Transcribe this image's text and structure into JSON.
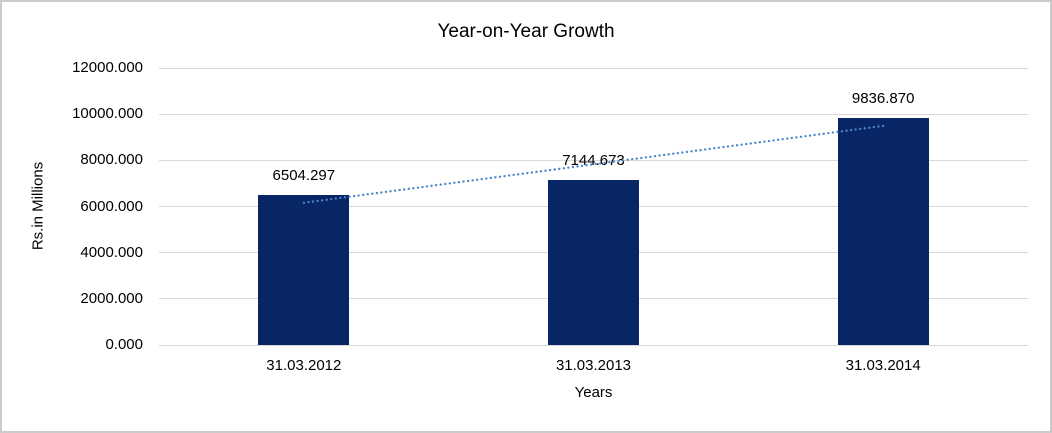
{
  "chart_data": {
    "type": "bar",
    "title": "Year-on-Year Growth",
    "xlabel": "Years",
    "ylabel": "Rs.in Millions",
    "categories": [
      "31.03.2012",
      "31.03.2013",
      "31.03.2014"
    ],
    "values": [
      6504.297,
      7144.673,
      9836.87
    ],
    "data_labels": [
      "6504.297",
      "7144.673",
      "9836.870"
    ],
    "ylim": [
      0,
      12000
    ],
    "y_ticks": [
      {
        "value": 0,
        "label": "0.000"
      },
      {
        "value": 2000,
        "label": "2000.000"
      },
      {
        "value": 4000,
        "label": "4000.000"
      },
      {
        "value": 6000,
        "label": "6000.000"
      },
      {
        "value": 8000,
        "label": "8000.000"
      },
      {
        "value": 10000,
        "label": "10000.000"
      },
      {
        "value": 12000,
        "label": "12000.000"
      }
    ],
    "grid": true,
    "legend": false,
    "trendline": {
      "type": "linear",
      "style": "dotted"
    },
    "colors": {
      "bar": "#082566",
      "trendline": "#4a86c8",
      "gridline": "#d9d9d9",
      "text": "#000000",
      "border": "#cbcbcb",
      "background": "#ffffff"
    }
  }
}
